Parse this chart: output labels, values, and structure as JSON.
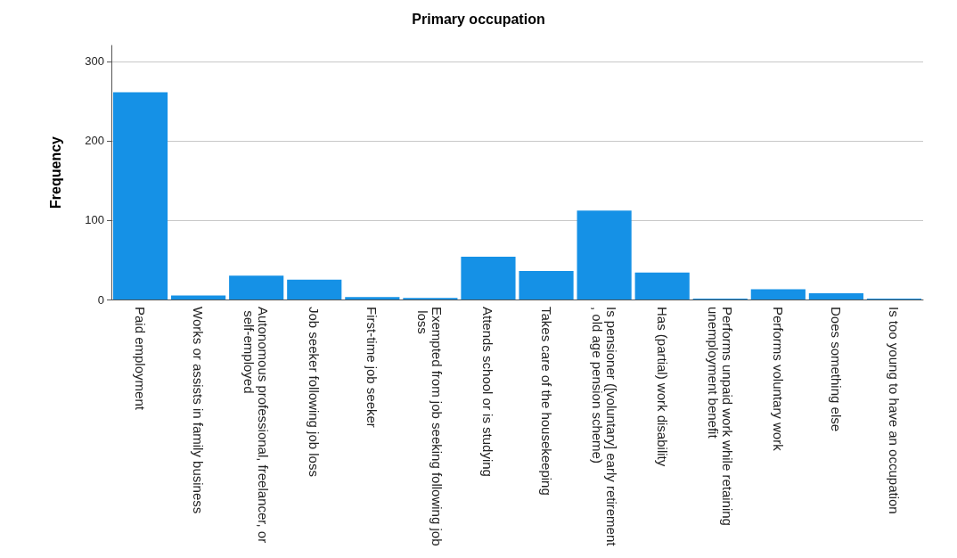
{
  "chart_data": {
    "type": "bar",
    "title": "Primary occupation",
    "ylabel": "Frequency",
    "categories": [
      "Paid employment",
      "Works or assists in family business",
      "Autonomous professional, freelancer, or self-employed",
      "Job seeker following job loss",
      "First-time job seeker",
      "Exempted from job seeking following job loss",
      "Attends school or is studying",
      "Takes care of the housekeeping",
      "Is pensioner ([voluntary] early retirement, old age pension scheme)",
      "Has (partial) work disability",
      "Performs unpaid work while retaining unemployment benefit",
      "Performs voluntary work",
      "Does something else",
      "Is too young to have an occupation"
    ],
    "values": [
      261,
      5,
      30,
      25,
      3,
      2,
      54,
      36,
      112,
      34,
      1,
      13,
      8,
      1
    ],
    "color": "#1591e6",
    "ylim": [
      0,
      320
    ],
    "yticks": [
      0,
      100,
      200,
      300
    ],
    "grid": "y"
  }
}
